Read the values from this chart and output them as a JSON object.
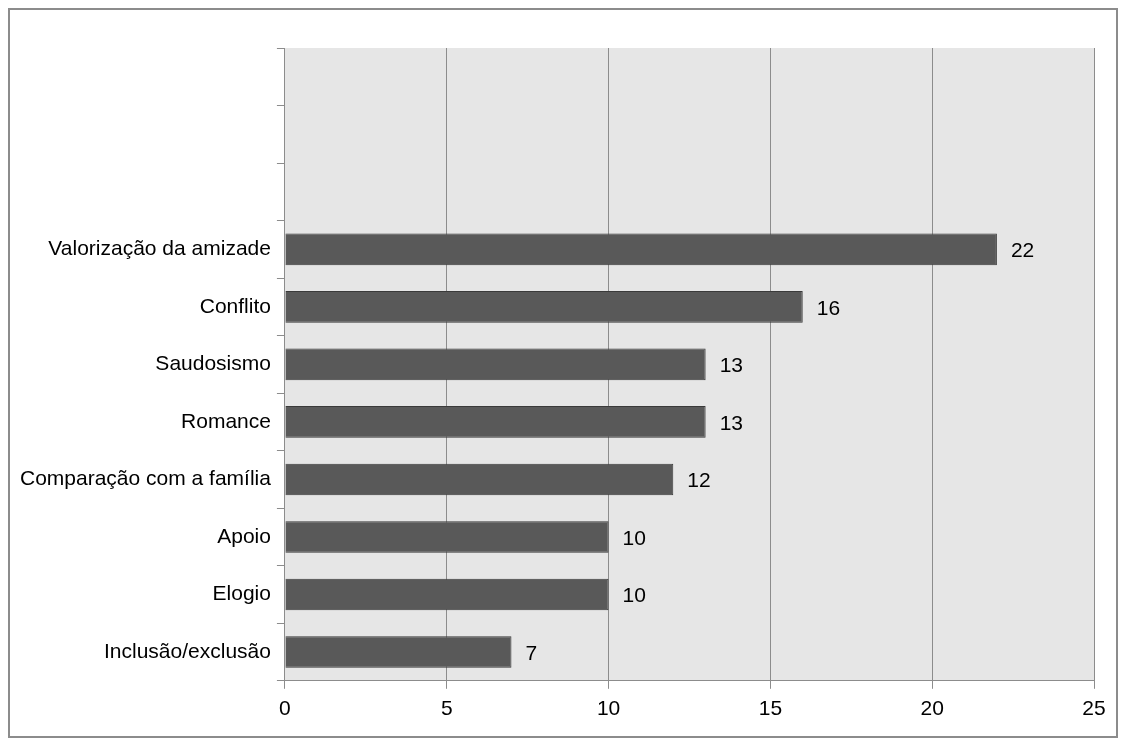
{
  "chart_data": {
    "type": "bar",
    "orientation": "horizontal",
    "categories": [
      null,
      null,
      null,
      "Valorização da amizade",
      "Conflito",
      "Saudosismo",
      "Romance",
      "Comparação com a família",
      "Apoio",
      "Elogio",
      "Inclusão/exclusão"
    ],
    "values": [
      null,
      null,
      null,
      22,
      16,
      13,
      13,
      12,
      10,
      10,
      7
    ],
    "color": "#595959",
    "xlim": [
      0,
      25
    ],
    "xticks": [
      0,
      5,
      10,
      15,
      20,
      25
    ],
    "grid": "x",
    "data_labels": true,
    "legend": false
  }
}
